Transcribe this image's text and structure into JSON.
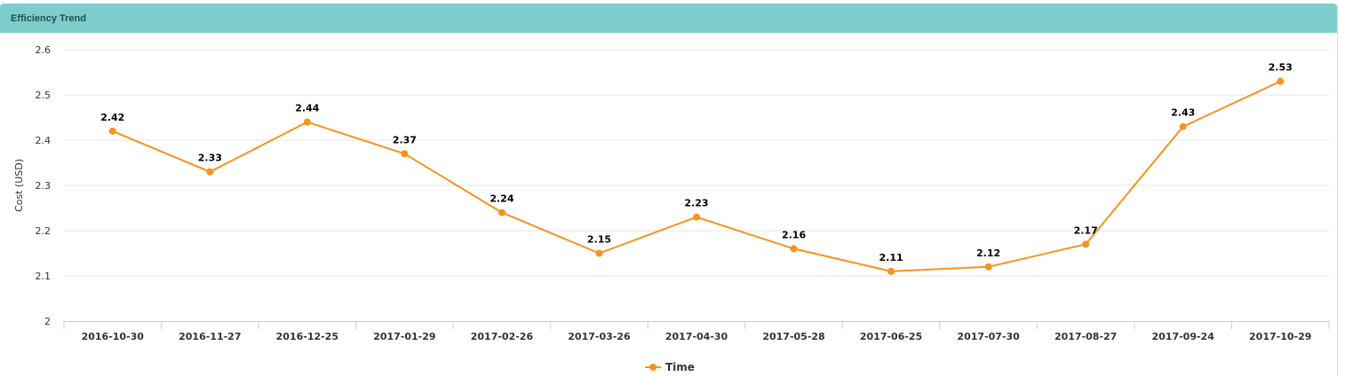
{
  "panel": {
    "title": "Efficiency Trend"
  },
  "chart_data": {
    "type": "line",
    "title": "",
    "xlabel": "",
    "ylabel": "Cost (USD)",
    "ylim": [
      2,
      2.6
    ],
    "yticks": [
      "2",
      "2.1",
      "2.2",
      "2.3",
      "2.4",
      "2.5",
      "2.6"
    ],
    "grid": true,
    "legend": "bottom-center",
    "color": "#f7931e",
    "categories": [
      "2016-10-30",
      "2016-11-27",
      "2016-12-25",
      "2017-01-29",
      "2017-02-26",
      "2017-03-26",
      "2017-04-30",
      "2017-05-28",
      "2017-06-25",
      "2017-07-30",
      "2017-08-27",
      "2017-09-24",
      "2017-10-29"
    ],
    "series": [
      {
        "name": "Time",
        "values": [
          2.42,
          2.33,
          2.44,
          2.37,
          2.24,
          2.15,
          2.23,
          2.16,
          2.11,
          2.12,
          2.17,
          2.43,
          2.53
        ]
      }
    ]
  }
}
